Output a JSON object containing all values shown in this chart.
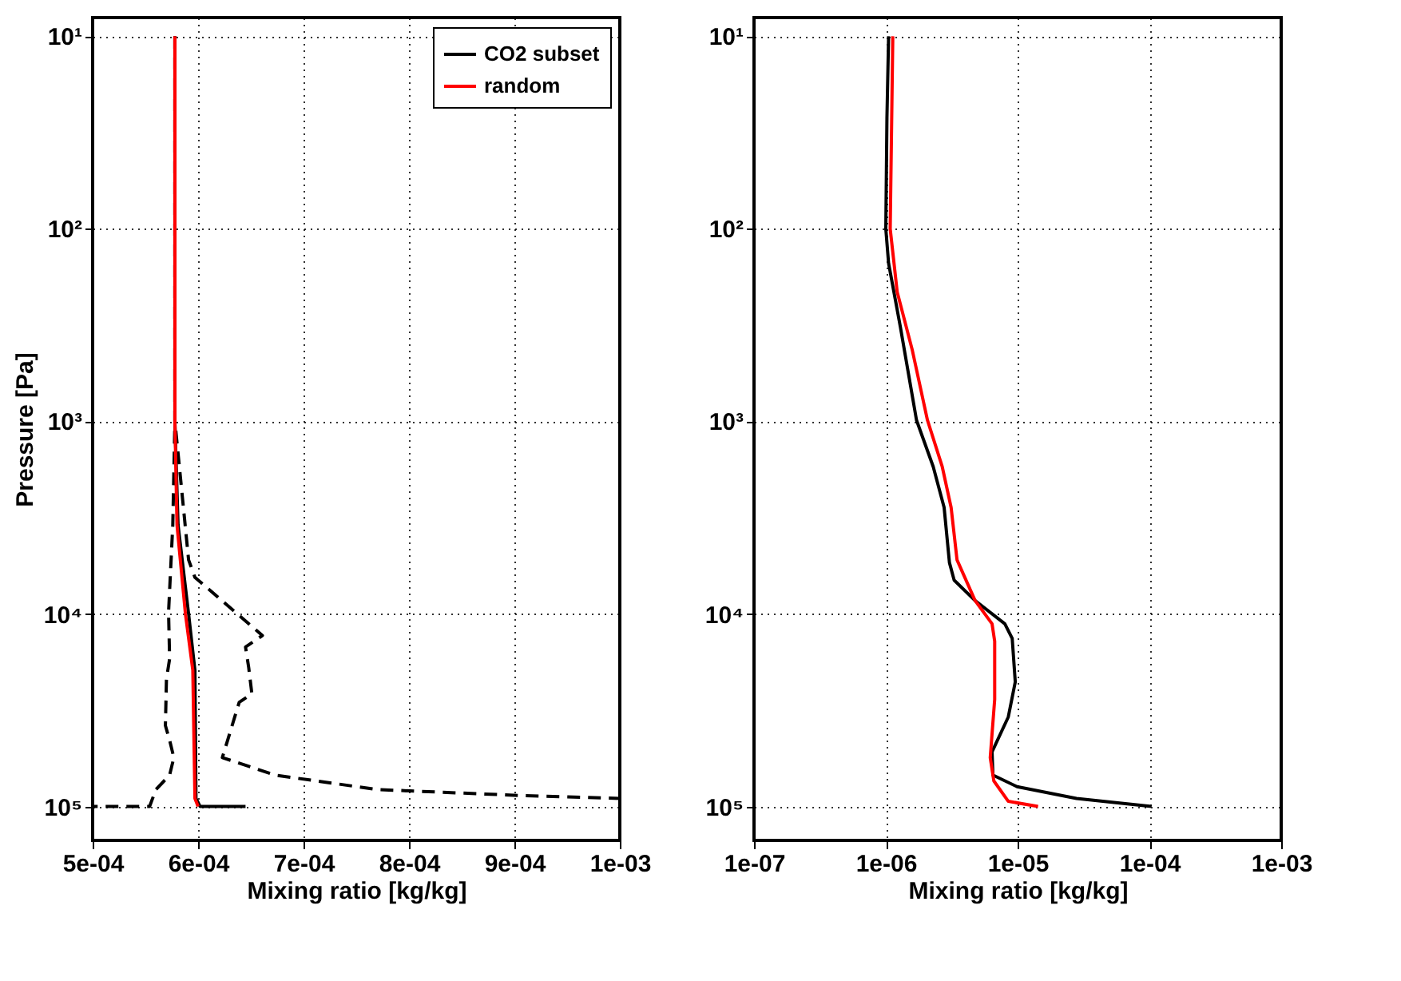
{
  "chart_data": [
    {
      "type": "line",
      "xlabel": "Mixing ratio [kg/kg]",
      "ylabel": "Pressure [Pa]",
      "log": "y",
      "grid": true,
      "legend": "top right",
      "xlim": [
        0.0005,
        0.001
      ],
      "xticks": [
        {
          "value": 0.0005,
          "label": "5e-04"
        },
        {
          "value": 0.0006,
          "label": "6e-04"
        },
        {
          "value": 0.0007,
          "label": "7e-04"
        },
        {
          "value": 0.0008,
          "label": "8e-04"
        },
        {
          "value": 0.0009,
          "label": "9e-04"
        },
        {
          "value": 0.001,
          "label": "1e-03"
        }
      ],
      "ylim": [
        150000,
        8
      ],
      "yticks": [
        {
          "value": 10,
          "label": "10¹"
        },
        {
          "value": 100,
          "label": "10²"
        },
        {
          "value": 1000,
          "label": "10³"
        },
        {
          "value": 10000,
          "label": "10⁴"
        },
        {
          "value": 100000,
          "label": "10⁵"
        }
      ],
      "series": [
        {
          "color": "#000000",
          "line_style": "dashed",
          "x": [
            0.000578,
            0.000578,
            0.000576,
            0.000572,
            0.000573,
            0.00057,
            0.000569,
            0.000573,
            0.000577,
            0.000573,
            0.00056,
            0.000554,
            0.0005
          ],
          "values": [
            10,
            1000,
            3450,
            9800,
            17100,
            21780,
            38020,
            45290,
            55720,
            68710,
            81660,
            100000,
            100000
          ]
        },
        {
          "color": "#000000",
          "line_style": "dashed",
          "x": [
            0.000578,
            0.000578,
            0.000591,
            0.000597,
            0.000661,
            0.000645,
            0.000648,
            0.000651,
            0.000639,
            0.000623,
            0.000673,
            0.00077,
            0.000906,
            0.001
          ],
          "values": [
            10,
            1000,
            5240,
            6460,
            12940,
            14860,
            18970,
            25940,
            28770,
            55720,
            68710,
            81660,
            87700,
            90780
          ]
        },
        {
          "name": "CO2 subset",
          "color": "#000000",
          "line_style": "solid",
          "x": [
            0.000578,
            0.000578,
            0.000581,
            0.000591,
            0.000597,
            0.000598,
            0.000602,
            0.000645
          ],
          "values": [
            10,
            1000,
            3450,
            10000,
            19630,
            90780,
            100000,
            100000
          ]
        },
        {
          "name": "random",
          "color": "#ff0000",
          "line_style": "solid",
          "x": [
            0.000578,
            0.000578,
            0.00058,
            0.000588,
            0.000595,
            0.000597,
            0.0006
          ],
          "values": [
            10,
            1000,
            3450,
            10000,
            19630,
            90780,
            100000
          ]
        }
      ]
    },
    {
      "type": "line",
      "xlabel": "Mixing ratio [kg/kg]",
      "log": "xy",
      "grid": true,
      "xlim": [
        1e-07,
        0.001
      ],
      "xticks": [
        {
          "value": 1e-07,
          "label": "1e-07"
        },
        {
          "value": 1e-06,
          "label": "1e-06"
        },
        {
          "value": 1e-05,
          "label": "1e-05"
        },
        {
          "value": 0.0001,
          "label": "1e-04"
        },
        {
          "value": 0.001,
          "label": "1e-03"
        }
      ],
      "ylim": [
        150000,
        8
      ],
      "yticks": [
        {
          "value": 10,
          "label": "10¹"
        },
        {
          "value": 100,
          "label": "10²"
        },
        {
          "value": 1000,
          "label": "10³"
        },
        {
          "value": 10000,
          "label": "10⁴"
        },
        {
          "value": 100000,
          "label": "10⁵"
        }
      ],
      "series": [
        {
          "color": "#000000",
          "line_style": "solid",
          "x": [
            1.05e-06,
            1.02e-06,
            1e-06,
            1.05e-06,
            1.29e-06,
            1.71e-06,
            2.29e-06,
            2.77e-06,
            3.04e-06,
            3.3e-06,
            4.76e-06,
            8e-06,
            9.1e-06,
            9.6e-06,
            8.5e-06,
            6.4e-06,
            6.5e-06,
            9.9e-06,
            2.8e-05,
            0.000104
          ],
          "values": [
            10,
            26.5,
            100,
            151,
            324,
            986,
            1720,
            2800,
            5420,
            6680,
            8530,
            11250,
            13400,
            22540,
            34280,
            52000,
            68710,
            78890,
            90780,
            100000
          ]
        },
        {
          "color": "#ff0000",
          "line_style": "solid",
          "x": [
            1.13e-06,
            1.08e-06,
            1.22e-06,
            1.59e-06,
            2.07e-06,
            2.68e-06,
            3.13e-06,
            3.47e-06,
            4.76e-06,
            6.4e-06,
            6.7e-06,
            6.7e-06,
            6.2e-06,
            6.6e-06,
            8.5e-06,
            1.43e-05
          ],
          "values": [
            10,
            100,
            213,
            428,
            986,
            1720,
            2800,
            5240,
            8530,
            11250,
            13870,
            27800,
            55720,
            73620,
            93970,
            100000
          ]
        }
      ]
    }
  ]
}
